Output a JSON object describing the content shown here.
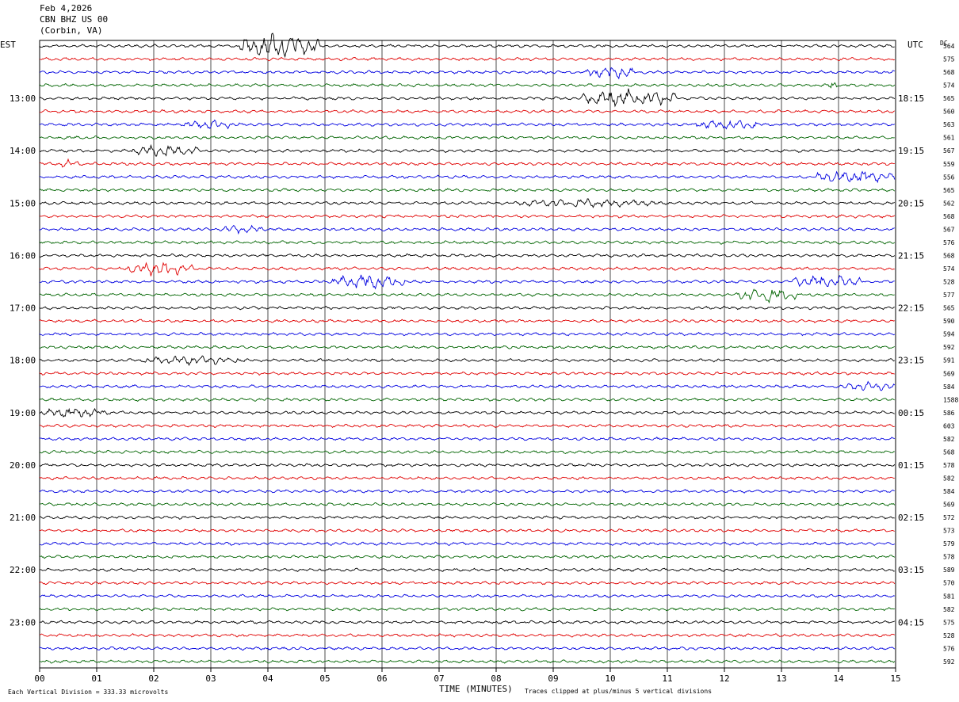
{
  "header": {
    "date": "Feb 4,2026",
    "station": "CBN BHZ US 00",
    "location": "(Corbin, VA)"
  },
  "left_axis_label": "EST",
  "right_axis_label": "UTC",
  "dc_label": "DC",
  "footer": {
    "scale_note": "Each Vertical Division =  333.33 microvolts",
    "xlabel": "TIME (MINUTES)",
    "clip_note": "Traces clipped at plus/minus 5 vertical divisions"
  },
  "colors": {
    "trace_cycle": [
      "#000000",
      "#e00000",
      "#0000e0",
      "#006400"
    ],
    "grid": "#000000",
    "background": "#ffffff"
  },
  "chart_data": {
    "type": "line",
    "subtype": "helicorder",
    "xlabel": "TIME (MINUTES)",
    "xlim": [
      0,
      15
    ],
    "x_ticks": [
      "00",
      "01",
      "02",
      "03",
      "04",
      "05",
      "06",
      "07",
      "08",
      "09",
      "10",
      "11",
      "12",
      "13",
      "14",
      "15"
    ],
    "rows_per_hour": 4,
    "row_count": 48,
    "left_time_labels": [
      "13:00",
      "14:00",
      "15:00",
      "16:00",
      "17:00",
      "18:00",
      "19:00",
      "20:00",
      "21:00",
      "22:00",
      "23:00"
    ],
    "left_label_first_row": 4,
    "right_time_labels": [
      "18:15",
      "19:15",
      "20:15",
      "21:15",
      "22:15",
      "23:15",
      "00:15",
      "01:15",
      "02:15",
      "03:15",
      "04:15"
    ],
    "right_label_first_row": 4,
    "dc_offsets": [
      "564",
      "575",
      "568",
      "574",
      "565",
      "560",
      "563",
      "561",
      "567",
      "559",
      "556",
      "565",
      "562",
      "568",
      "567",
      "576",
      "568",
      "574",
      "528",
      "577",
      "565",
      "590",
      "594",
      "592",
      "591",
      "569",
      "584",
      "1588",
      "586",
      "603",
      "582",
      "568",
      "578",
      "582",
      "584",
      "569",
      "572",
      "573",
      "579",
      "578",
      "589",
      "570",
      "581",
      "582",
      "575",
      "528",
      "576",
      "592"
    ],
    "events": [
      {
        "row": 0,
        "start_min": 3.5,
        "end_min": 4.9,
        "amp": 6
      },
      {
        "row": 2,
        "start_min": 9.6,
        "end_min": 10.4,
        "amp": 3
      },
      {
        "row": 3,
        "start_min": 13.8,
        "end_min": 14.0,
        "amp": 2
      },
      {
        "row": 4,
        "start_min": 9.5,
        "end_min": 11.2,
        "amp": 4
      },
      {
        "row": 6,
        "start_min": 2.5,
        "end_min": 3.5,
        "amp": 1.5
      },
      {
        "row": 6,
        "start_min": 11.5,
        "end_min": 12.6,
        "amp": 2
      },
      {
        "row": 8,
        "start_min": 1.6,
        "end_min": 2.8,
        "amp": 2.5
      },
      {
        "row": 9,
        "start_min": 0.3,
        "end_min": 0.7,
        "amp": 1.5
      },
      {
        "row": 10,
        "start_min": 13.6,
        "end_min": 15.0,
        "amp": 3
      },
      {
        "row": 12,
        "start_min": 8.4,
        "end_min": 10.8,
        "amp": 1.5
      },
      {
        "row": 14,
        "start_min": 3.2,
        "end_min": 3.9,
        "amp": 1.5
      },
      {
        "row": 17,
        "start_min": 1.5,
        "end_min": 2.7,
        "amp": 3
      },
      {
        "row": 18,
        "start_min": 5.1,
        "end_min": 6.4,
        "amp": 3
      },
      {
        "row": 18,
        "start_min": 13.2,
        "end_min": 14.4,
        "amp": 3
      },
      {
        "row": 19,
        "start_min": 12.2,
        "end_min": 13.3,
        "amp": 3
      },
      {
        "row": 24,
        "start_min": 1.8,
        "end_min": 3.6,
        "amp": 1.5
      },
      {
        "row": 26,
        "start_min": 14.0,
        "end_min": 15.0,
        "amp": 1.5
      },
      {
        "row": 28,
        "start_min": 0.0,
        "end_min": 1.2,
        "amp": 2
      }
    ]
  }
}
